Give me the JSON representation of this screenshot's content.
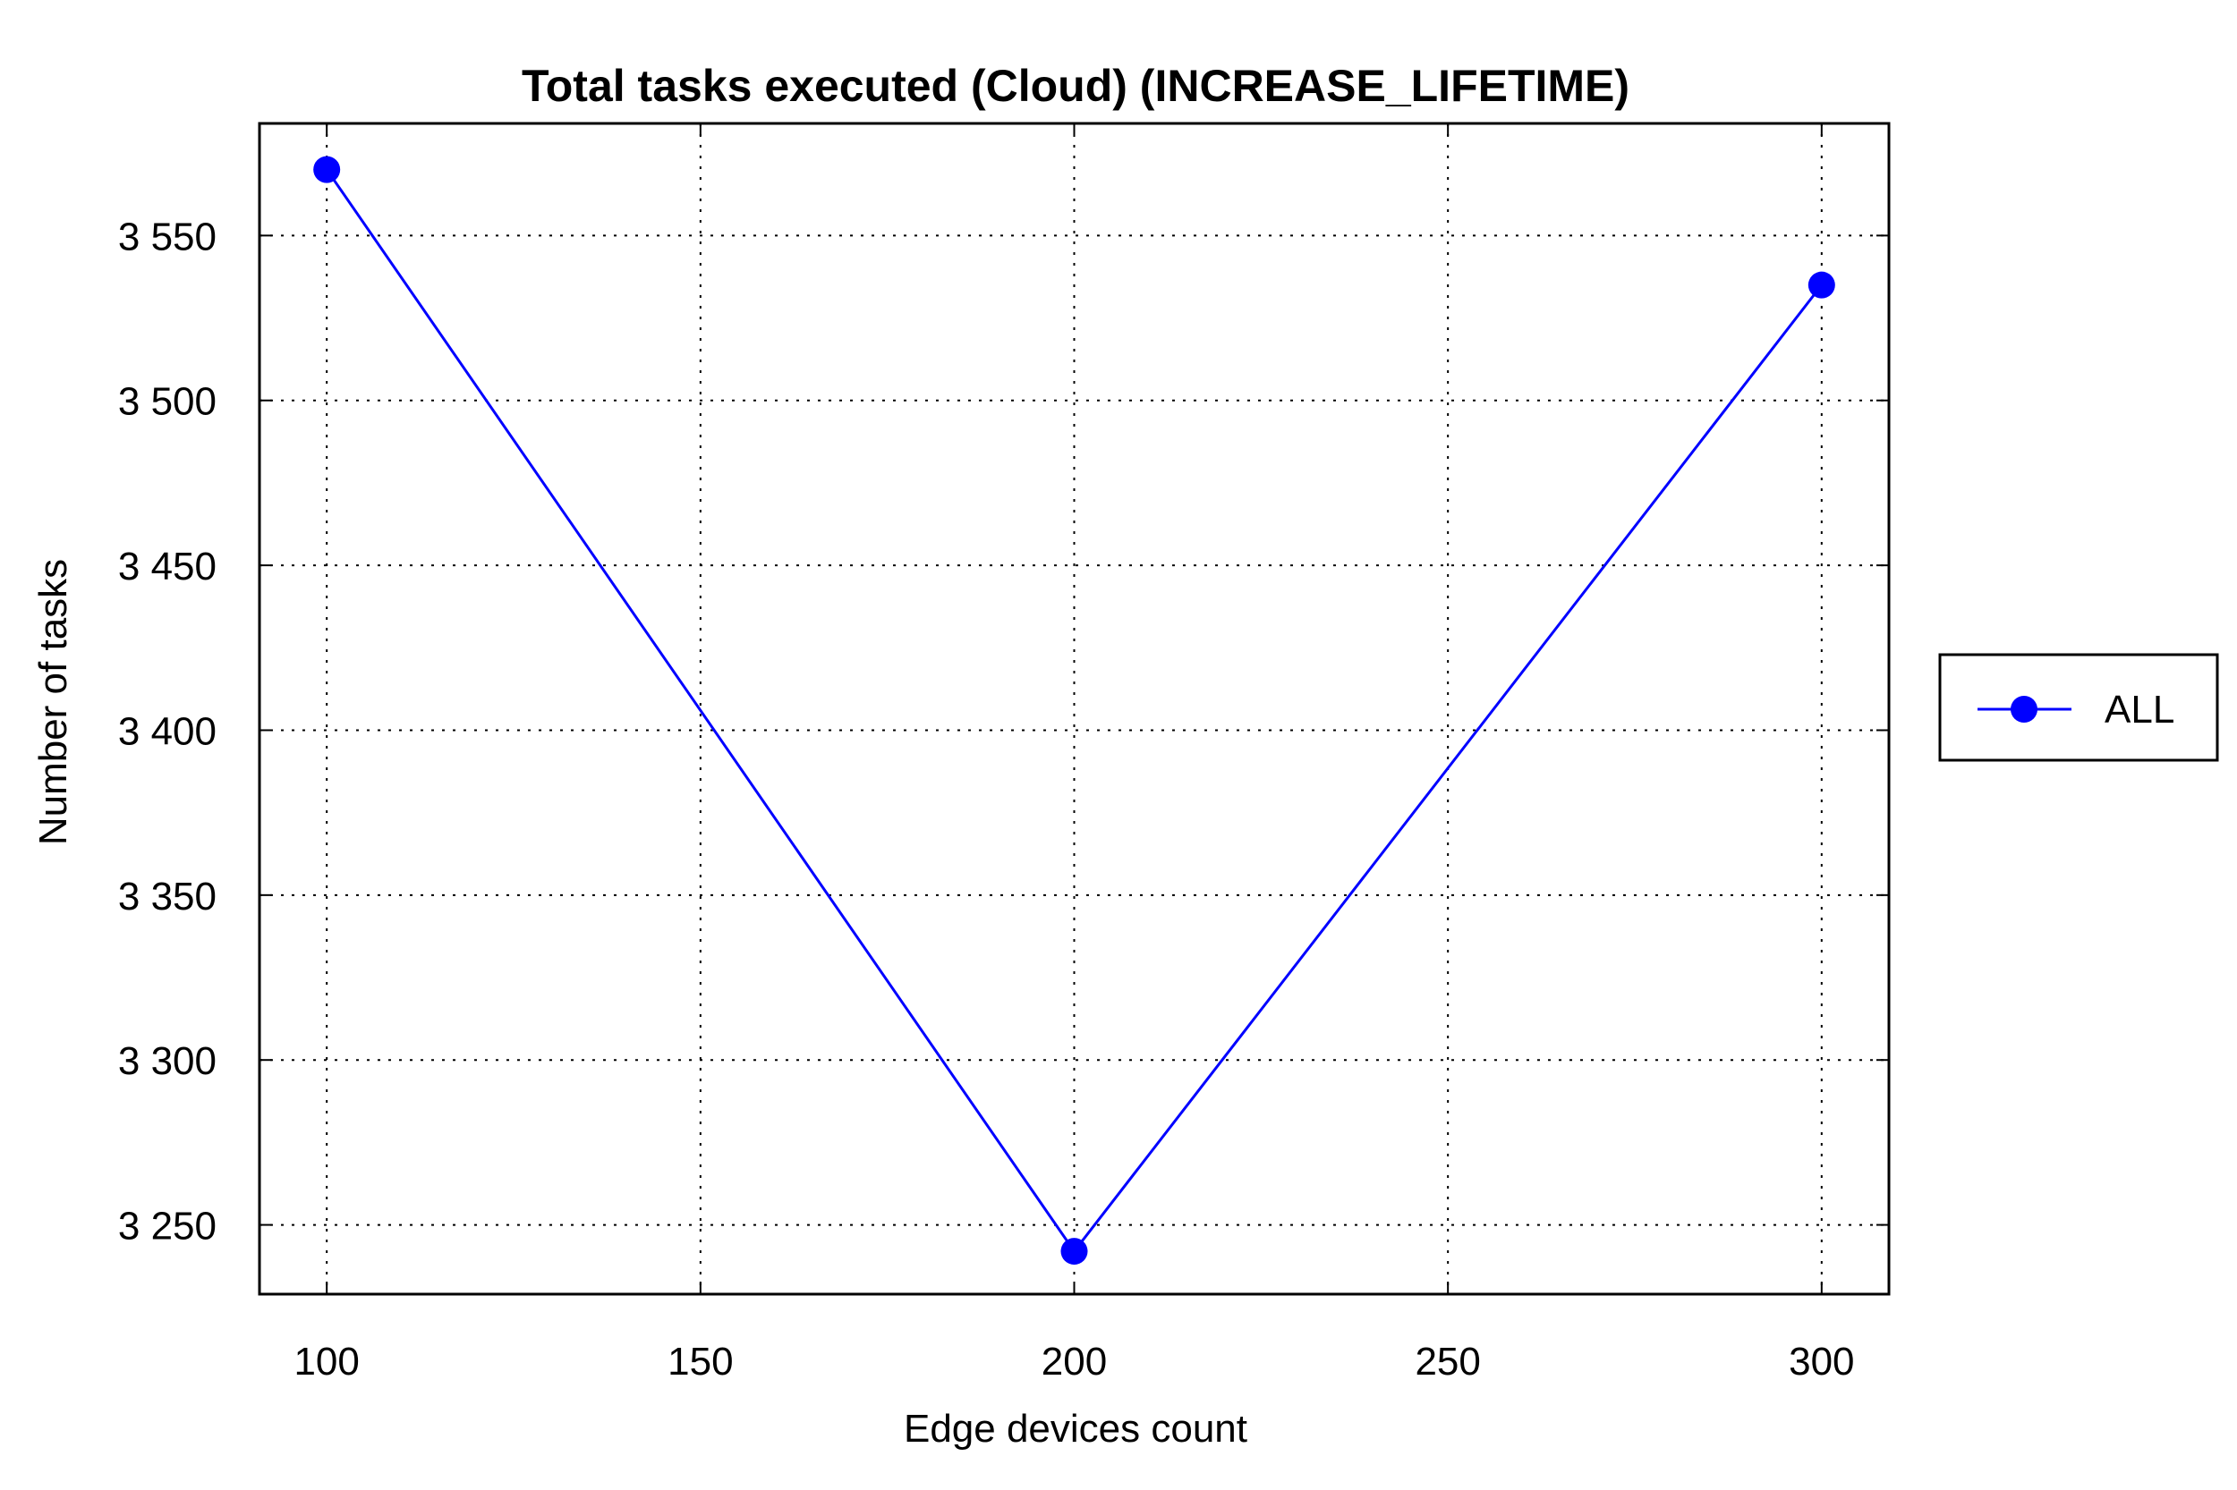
{
  "chart_data": {
    "type": "line",
    "title": "Total tasks executed (Cloud) (INCREASE_LIFETIME)",
    "xlabel": "Edge devices count",
    "ylabel": "Number of tasks",
    "x": [
      100,
      200,
      300
    ],
    "series": [
      {
        "name": "ALL",
        "values": [
          3570,
          3242,
          3535
        ],
        "color": "#0000ff"
      }
    ],
    "xlim": [
      91,
      309
    ],
    "ylim": [
      3229,
      3584
    ],
    "xticks": [
      100,
      150,
      200,
      250,
      300
    ],
    "xtick_labels": [
      "100",
      "150",
      "200",
      "250",
      "300"
    ],
    "yticks": [
      3250,
      3300,
      3350,
      3400,
      3450,
      3500,
      3550
    ],
    "ytick_labels": [
      "3 250",
      "3 300",
      "3 350",
      "3 400",
      "3 450",
      "3 500",
      "3 550"
    ],
    "grid": true,
    "legend_position": "right"
  }
}
